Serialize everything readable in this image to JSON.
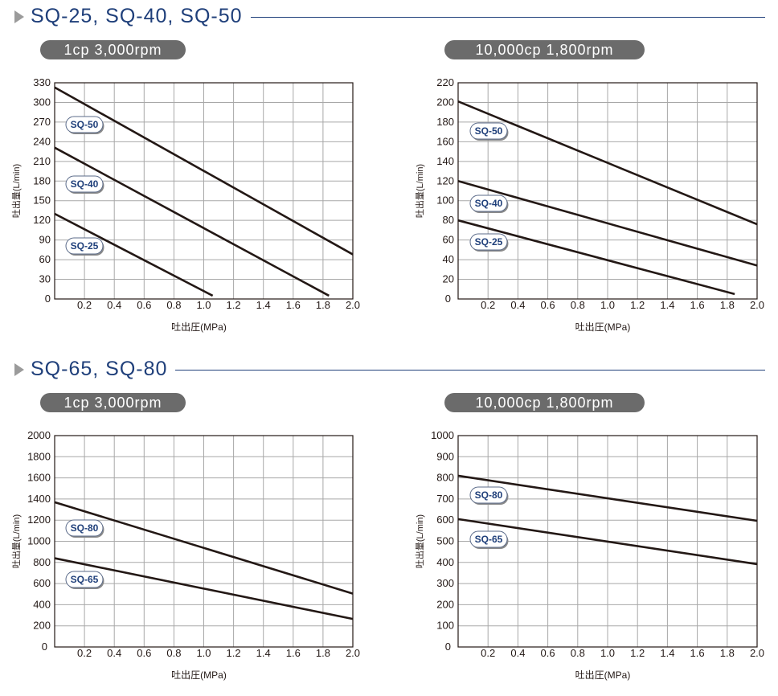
{
  "sections": [
    {
      "title": "SQ-25, SQ-40, SQ-50"
    },
    {
      "title": "SQ-65, SQ-80"
    }
  ],
  "colors": {
    "title": "#1f3f7a",
    "pill": "#6b6b6b",
    "line": "#231815",
    "grid": "#a8a8a8"
  },
  "chart_data": [
    {
      "type": "line",
      "condition": "1cp 3,000rpm",
      "xlabel": "吐出圧(MPa)",
      "ylabel": "吐出量(L/min)",
      "xlim": [
        0,
        2.0
      ],
      "ylim": [
        0,
        330
      ],
      "x_ticks": [
        "0.2",
        "0.4",
        "0.6",
        "0.8",
        "1.0",
        "1.2",
        "1.4",
        "1.6",
        "1.8",
        "2.0"
      ],
      "y_ticks": [
        "0",
        "30",
        "60",
        "90",
        "120",
        "150",
        "180",
        "210",
        "240",
        "270",
        "300",
        "330"
      ],
      "x_origin_label": "0",
      "grid": true,
      "series": [
        {
          "name": "SQ-50",
          "x": [
            0,
            2.0
          ],
          "y": [
            323,
            68
          ]
        },
        {
          "name": "SQ-40",
          "x": [
            0,
            1.84
          ],
          "y": [
            231,
            5
          ]
        },
        {
          "name": "SQ-25",
          "x": [
            0,
            1.06
          ],
          "y": [
            130,
            5
          ]
        }
      ]
    },
    {
      "type": "line",
      "condition": "10,000cp 1,800rpm",
      "xlabel": "吐出圧(MPa)",
      "ylabel": "吐出量(L/min)",
      "xlim": [
        0,
        2.0
      ],
      "ylim": [
        0,
        220
      ],
      "x_ticks": [
        "0.2",
        "0.4",
        "0.6",
        "0.8",
        "1.0",
        "1.2",
        "1.4",
        "1.6",
        "1.8",
        "2.0"
      ],
      "y_ticks": [
        "20",
        "40",
        "60",
        "80",
        "100",
        "120",
        "140",
        "160",
        "180",
        "200",
        "220"
      ],
      "x_origin_label": "0",
      "grid": true,
      "series": [
        {
          "name": "SQ-50",
          "x": [
            0,
            2.0
          ],
          "y": [
            201,
            76
          ]
        },
        {
          "name": "SQ-40",
          "x": [
            0,
            2.0
          ],
          "y": [
            120,
            34
          ]
        },
        {
          "name": "SQ-25",
          "x": [
            0,
            1.85
          ],
          "y": [
            80,
            5
          ]
        }
      ]
    },
    {
      "type": "line",
      "condition": "1cp 3,000rpm",
      "xlabel": "吐出圧(MPa)",
      "ylabel": "吐出量(L/min)",
      "xlim": [
        0,
        2.0
      ],
      "ylim": [
        0,
        2000
      ],
      "x_ticks": [
        "0.2",
        "0.4",
        "0.6",
        "0.8",
        "1.0",
        "1.2",
        "1.4",
        "1.6",
        "1.8",
        "2.0"
      ],
      "y_ticks": [
        "200",
        "400",
        "600",
        "800",
        "1000",
        "1200",
        "1400",
        "1600",
        "1800",
        "2000"
      ],
      "x_origin_label": "0",
      "grid": true,
      "series": [
        {
          "name": "SQ-80",
          "x": [
            0,
            2.0
          ],
          "y": [
            1370,
            505
          ]
        },
        {
          "name": "SQ-65",
          "x": [
            0,
            2.0
          ],
          "y": [
            840,
            265
          ]
        }
      ]
    },
    {
      "type": "line",
      "condition": "10,000cp 1,800rpm",
      "xlabel": "吐出圧(MPa)",
      "ylabel": "吐出量(L/min)",
      "xlim": [
        0,
        2.0
      ],
      "ylim": [
        0,
        1000
      ],
      "x_ticks": [
        "0.2",
        "0.4",
        "0.6",
        "0.8",
        "1.0",
        "1.2",
        "1.4",
        "1.6",
        "1.8",
        "2.0"
      ],
      "y_ticks": [
        "100",
        "200",
        "300",
        "400",
        "500",
        "600",
        "700",
        "800",
        "900",
        "1000"
      ],
      "x_origin_label": "0",
      "grid": true,
      "series": [
        {
          "name": "SQ-80",
          "x": [
            0,
            2.0
          ],
          "y": [
            810,
            597
          ]
        },
        {
          "name": "SQ-65",
          "x": [
            0,
            2.0
          ],
          "y": [
            605,
            392
          ]
        }
      ]
    }
  ]
}
